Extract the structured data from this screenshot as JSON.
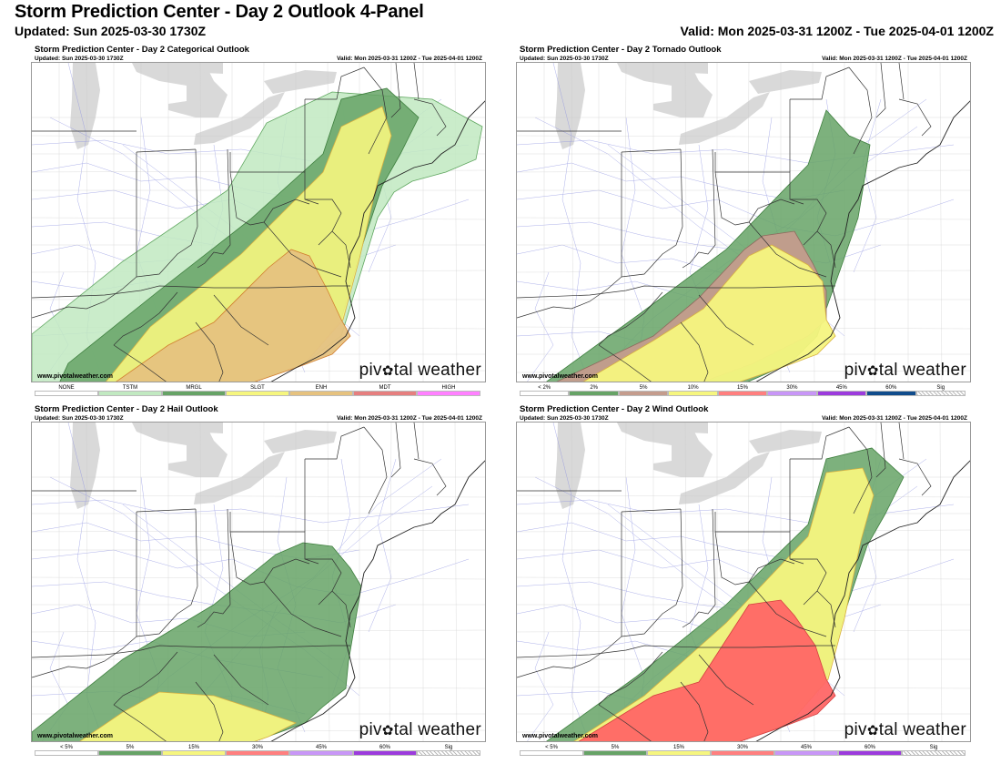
{
  "header": {
    "title": "Storm Prediction Center - Day 2 Outlook 4-Panel",
    "updated": "Updated: Sun 2025-03-30 1730Z",
    "valid": "Valid: Mon 2025-03-31 1200Z - Tue 2025-04-01 1200Z"
  },
  "common": {
    "updated": "Updated: Sun 2025-03-30 1730Z",
    "valid": "Valid: Mon 2025-03-31 1200Z - Tue 2025-04-01 1200Z",
    "watermark": "www.pivotalweather.com",
    "brand_left": "piv",
    "brand_gear": "✿",
    "brand_right": "tal weather"
  },
  "colors": {
    "tstm": "#c1e9c1",
    "mrgl": "#66a366",
    "slgt": "#f6f67f",
    "enh": "#e6c27f",
    "mdt": "#e67f7f",
    "high": "#ff80ff",
    "tor5": "#c49c8d",
    "prob15": "#ff6666",
    "prob30": "#ff7f7f",
    "prob45": "#c896f7",
    "prob60": "#9c3bdd",
    "tor60": "#104c8c",
    "lakes": "#d9d9d9"
  },
  "panels": [
    {
      "id": "categorical",
      "title": "Storm Prediction Center - Day 2 Categorical Outlook",
      "legend": [
        {
          "label": "NONE",
          "color": "#ffffff"
        },
        {
          "label": "TSTM",
          "color": "#c1e9c1"
        },
        {
          "label": "MRGL",
          "color": "#66a366"
        },
        {
          "label": "SLGT",
          "color": "#f6f67f"
        },
        {
          "label": "ENH",
          "color": "#e6c27f"
        },
        {
          "label": "MDT",
          "color": "#e67f7f"
        },
        {
          "label": "HIGH",
          "color": "#ff80ff"
        }
      ]
    },
    {
      "id": "tornado",
      "title": "Storm Prediction Center - Day 2 Tornado Outlook",
      "legend": [
        {
          "label": "< 2%",
          "color": "#ffffff"
        },
        {
          "label": "2%",
          "color": "#66a366"
        },
        {
          "label": "5%",
          "color": "#c49c8d"
        },
        {
          "label": "10%",
          "color": "#f6f67f"
        },
        {
          "label": "15%",
          "color": "#ff7f7f"
        },
        {
          "label": "30%",
          "color": "#c896f7"
        },
        {
          "label": "45%",
          "color": "#9c3bdd"
        },
        {
          "label": "60%",
          "color": "#104c8c"
        },
        {
          "label": "Sig",
          "color": "hatch"
        }
      ]
    },
    {
      "id": "hail",
      "title": "Storm Prediction Center - Day 2 Hail Outlook",
      "legend": [
        {
          "label": "< 5%",
          "color": "#ffffff"
        },
        {
          "label": "5%",
          "color": "#66a366"
        },
        {
          "label": "15%",
          "color": "#f6f67f"
        },
        {
          "label": "30%",
          "color": "#ff7f7f"
        },
        {
          "label": "45%",
          "color": "#c896f7"
        },
        {
          "label": "60%",
          "color": "#9c3bdd"
        },
        {
          "label": "Sig",
          "color": "hatch"
        }
      ]
    },
    {
      "id": "wind",
      "title": "Storm Prediction Center - Day 2 Wind Outlook",
      "legend": [
        {
          "label": "< 5%",
          "color": "#ffffff"
        },
        {
          "label": "5%",
          "color": "#66a366"
        },
        {
          "label": "15%",
          "color": "#f6f67f"
        },
        {
          "label": "30%",
          "color": "#ff7f7f"
        },
        {
          "label": "45%",
          "color": "#c896f7"
        },
        {
          "label": "60%",
          "color": "#9c3bdd"
        },
        {
          "label": "Sig",
          "color": "hatch"
        }
      ]
    }
  ]
}
